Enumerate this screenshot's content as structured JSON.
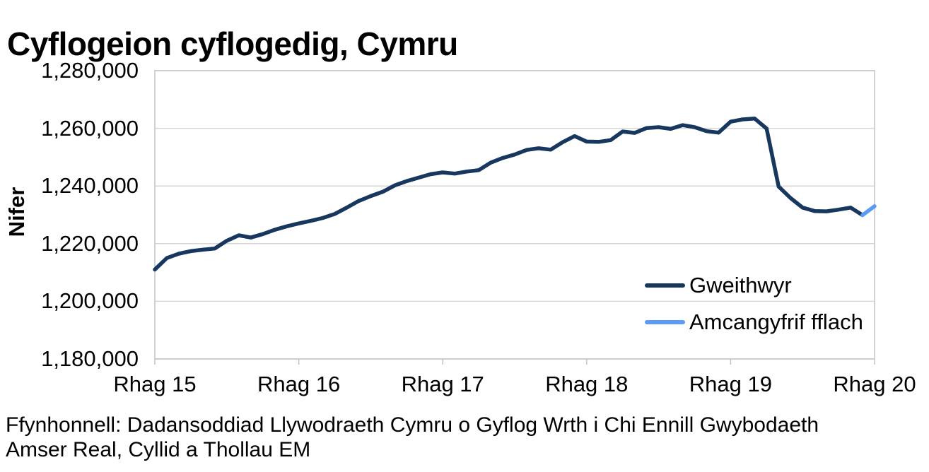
{
  "title": "Cyflogeion cyflogedig, Cymru",
  "source": {
    "line1": "Ffynhonnell: Dadansoddiad Llywodraeth Cymru o Gyflog Wrth i Chi Ennill Gwybodaeth",
    "line2": "Amser Real, Cyllid a Thollau EM"
  },
  "colors": {
    "gridline": "#d6d6d6",
    "axis": "#c4c4c4",
    "text": "#000000"
  },
  "chart_data": {
    "type": "line",
    "title": "Cyflogeion cyflogedig, Cymru",
    "xlabel": "",
    "ylabel": "Nifer",
    "grid": "horizontal",
    "legend_position": "inside-bottom-right",
    "x_unit": "monthly, Rhagfyr 2015 to Rhagfyr 2020 (61 points)",
    "x_tick_labels": [
      "Rhag 15",
      "Rhag 16",
      "Rhag 17",
      "Rhag 18",
      "Rhag 19",
      "Rhag 20"
    ],
    "x_tick_month_index": [
      0,
      12,
      24,
      36,
      48,
      60
    ],
    "ylim": [
      1180000,
      1280000
    ],
    "y_ticks": [
      1280000,
      1260000,
      1240000,
      1220000,
      1200000,
      1180000
    ],
    "y_tick_labels": [
      "1,280,000",
      "1,260,000",
      "1,240,000",
      "1,220,000",
      "1,200,000",
      "1,180,000"
    ],
    "series": [
      {
        "name": "Gweithwyr",
        "color": "#17375E",
        "x_start_index": 0,
        "values": [
          1211000,
          1215000,
          1216500,
          1217400,
          1217900,
          1218300,
          1221000,
          1222900,
          1222100,
          1223300,
          1224800,
          1226000,
          1227000,
          1227900,
          1228900,
          1230300,
          1232500,
          1234800,
          1236500,
          1238000,
          1240200,
          1241700,
          1242900,
          1244100,
          1244700,
          1244300,
          1245000,
          1245500,
          1248100,
          1249700,
          1250900,
          1252500,
          1253100,
          1252600,
          1255200,
          1257300,
          1255400,
          1255300,
          1255900,
          1258900,
          1258400,
          1260100,
          1260400,
          1259800,
          1261100,
          1260400,
          1259000,
          1258500,
          1262300,
          1263100,
          1263400,
          1259900,
          1239800,
          1235800,
          1232500,
          1231300,
          1231200,
          1231800,
          1232500,
          1229900
        ]
      },
      {
        "name": "Amcangyfrif fflach",
        "color": "#5B9BF5",
        "x_start_index": 59,
        "values": [
          1229900,
          1233000
        ]
      }
    ]
  }
}
